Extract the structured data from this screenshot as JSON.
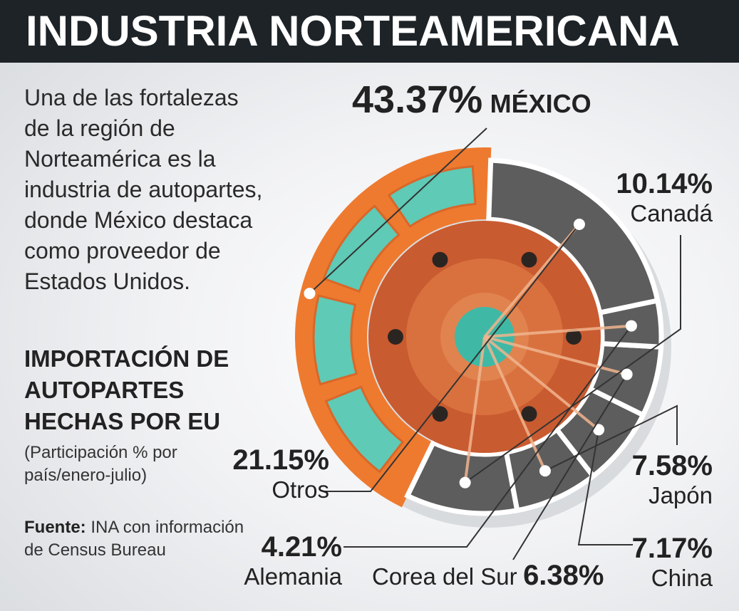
{
  "header": {
    "title": "INDUSTRIA NORTEAMERICANA"
  },
  "intro": "Una de las fortalezas de la región de Norteamérica es la industria de autopartes, donde México destaca como proveedor de Estados Unidos.",
  "chart_data": {
    "type": "pie",
    "title": "IMPORTACIÓN DE AUTOPARTES HECHAS POR EU",
    "subtitle": "(Participación % por país/enero-julio)",
    "unit": "%",
    "slices": [
      {
        "label": "MÉXICO",
        "value": 43.37,
        "value_text": "43.37%",
        "color": "#ee7a2f"
      },
      {
        "label": "Canadá",
        "value": 10.14,
        "value_text": "10.14%",
        "color": "#5d5d5d"
      },
      {
        "label": "Japón",
        "value": 7.58,
        "value_text": "7.58%",
        "color": "#5d5d5d"
      },
      {
        "label": "China",
        "value": 7.17,
        "value_text": "7.17%",
        "color": "#5d5d5d"
      },
      {
        "label": "Corea del Sur",
        "value": 6.38,
        "value_text": "6.38%",
        "color": "#5d5d5d"
      },
      {
        "label": "Alemania",
        "value": 4.21,
        "value_text": "4.21%",
        "color": "#5d5d5d"
      },
      {
        "label": "Otros",
        "value": 21.15,
        "value_text": "21.15%",
        "color": "#5d5d5d"
      }
    ]
  },
  "source": {
    "label": "Fuente:",
    "text": "INA con información de Census Bureau"
  },
  "colors": {
    "accent": "#ee7a2f",
    "header_bg": "#1d2327",
    "disc_gray": "#5d5d5d",
    "hub_teal": "#3fb9a6"
  }
}
